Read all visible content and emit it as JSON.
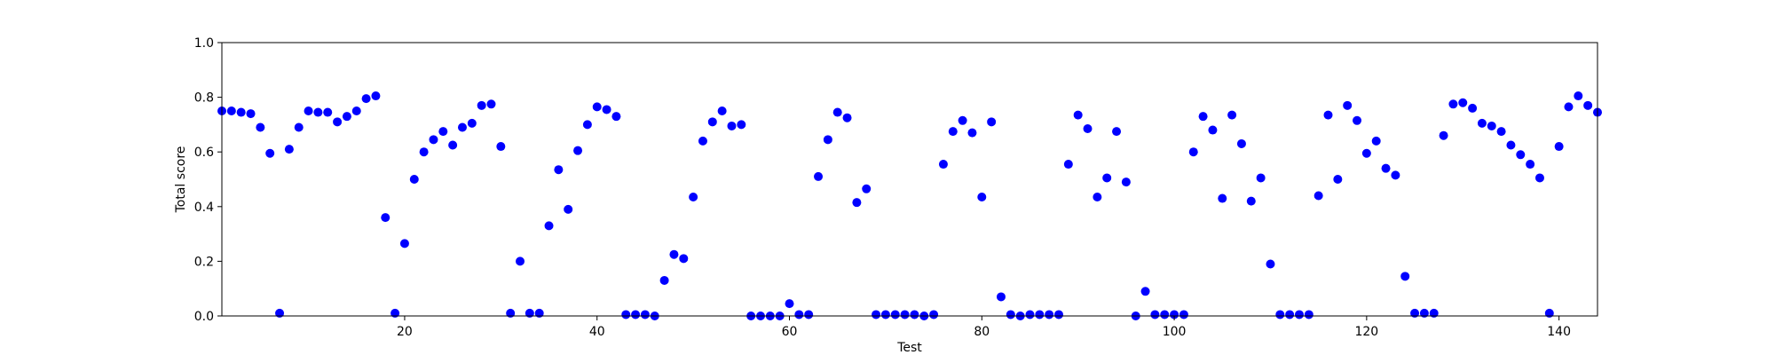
{
  "chart_data": {
    "type": "scatter",
    "xlabel": "Test",
    "ylabel": "Total score",
    "xlim": [
      1,
      144
    ],
    "ylim": [
      0,
      1
    ],
    "xticks": [
      20,
      40,
      60,
      80,
      100,
      120,
      140
    ],
    "yticks": [
      0.0,
      0.2,
      0.4,
      0.6,
      0.8,
      1.0
    ],
    "grid": false,
    "marker_color": "#0000ff",
    "series": [
      {
        "x": [
          1,
          2,
          3,
          4,
          5,
          6,
          7,
          8,
          9,
          10,
          11,
          12,
          13,
          14,
          15,
          16,
          17,
          18,
          19,
          20,
          21,
          22,
          23,
          24,
          25,
          26,
          27,
          28,
          29,
          30,
          31,
          32,
          33,
          34,
          35,
          36,
          37,
          38,
          39,
          40,
          41,
          42,
          43,
          44,
          45,
          46,
          47,
          48,
          49,
          50,
          51,
          52,
          53,
          54,
          55,
          56,
          57,
          58,
          59,
          60,
          61,
          62,
          63,
          64,
          65,
          66,
          67,
          68,
          69,
          70,
          71,
          72,
          73,
          74,
          75,
          76,
          77,
          78,
          79,
          80,
          81,
          82,
          83,
          84,
          85,
          86,
          87,
          88,
          89,
          90,
          91,
          92,
          93,
          94,
          95,
          96,
          97,
          98,
          99,
          100,
          101,
          102,
          103,
          104,
          105,
          106,
          107,
          108,
          109,
          110,
          111,
          112,
          113,
          114,
          115,
          116,
          117,
          118,
          119,
          120,
          121,
          122,
          123,
          124,
          125,
          126,
          127,
          128,
          129,
          130,
          131,
          132,
          133,
          134,
          135,
          136,
          137,
          138,
          139,
          140,
          141,
          142,
          143,
          144
        ],
        "y": [
          0.75,
          0.75,
          0.745,
          0.74,
          0.69,
          0.595,
          0.01,
          0.61,
          0.69,
          0.75,
          0.745,
          0.745,
          0.71,
          0.73,
          0.75,
          0.795,
          0.805,
          0.36,
          0.01,
          0.265,
          0.5,
          0.6,
          0.645,
          0.675,
          0.625,
          0.69,
          0.705,
          0.77,
          0.775,
          0.62,
          0.01,
          0.2,
          0.01,
          0.01,
          0.33,
          0.535,
          0.39,
          0.605,
          0.7,
          0.765,
          0.755,
          0.73,
          0.005,
          0.005,
          0.005,
          0.0,
          0.13,
          0.225,
          0.21,
          0.435,
          0.64,
          0.71,
          0.75,
          0.695,
          0.7,
          0.0,
          0.0,
          0.0,
          0.0,
          0.045,
          0.005,
          0.005,
          0.51,
          0.645,
          0.745,
          0.725,
          0.415,
          0.465,
          0.005,
          0.005,
          0.005,
          0.005,
          0.005,
          0.0,
          0.005,
          0.555,
          0.675,
          0.715,
          0.67,
          0.435,
          0.71,
          0.07,
          0.005,
          0.0,
          0.005,
          0.005,
          0.005,
          0.005,
          0.555,
          0.735,
          0.685,
          0.435,
          0.505,
          0.675,
          0.49,
          0.0,
          0.09,
          0.005,
          0.005,
          0.005,
          0.005,
          0.6,
          0.73,
          0.68,
          0.43,
          0.735,
          0.63,
          0.42,
          0.505,
          0.19,
          0.005,
          0.005,
          0.005,
          0.005,
          0.44,
          0.735,
          0.5,
          0.77,
          0.715,
          0.595,
          0.64,
          0.54,
          0.515,
          0.145,
          0.01,
          0.01,
          0.01,
          0.66,
          0.775,
          0.78,
          0.76,
          0.705,
          0.695,
          0.675,
          0.625,
          0.59,
          0.555,
          0.505,
          0.01,
          0.62,
          0.765,
          0.805,
          0.77,
          0.745
        ]
      }
    ]
  }
}
